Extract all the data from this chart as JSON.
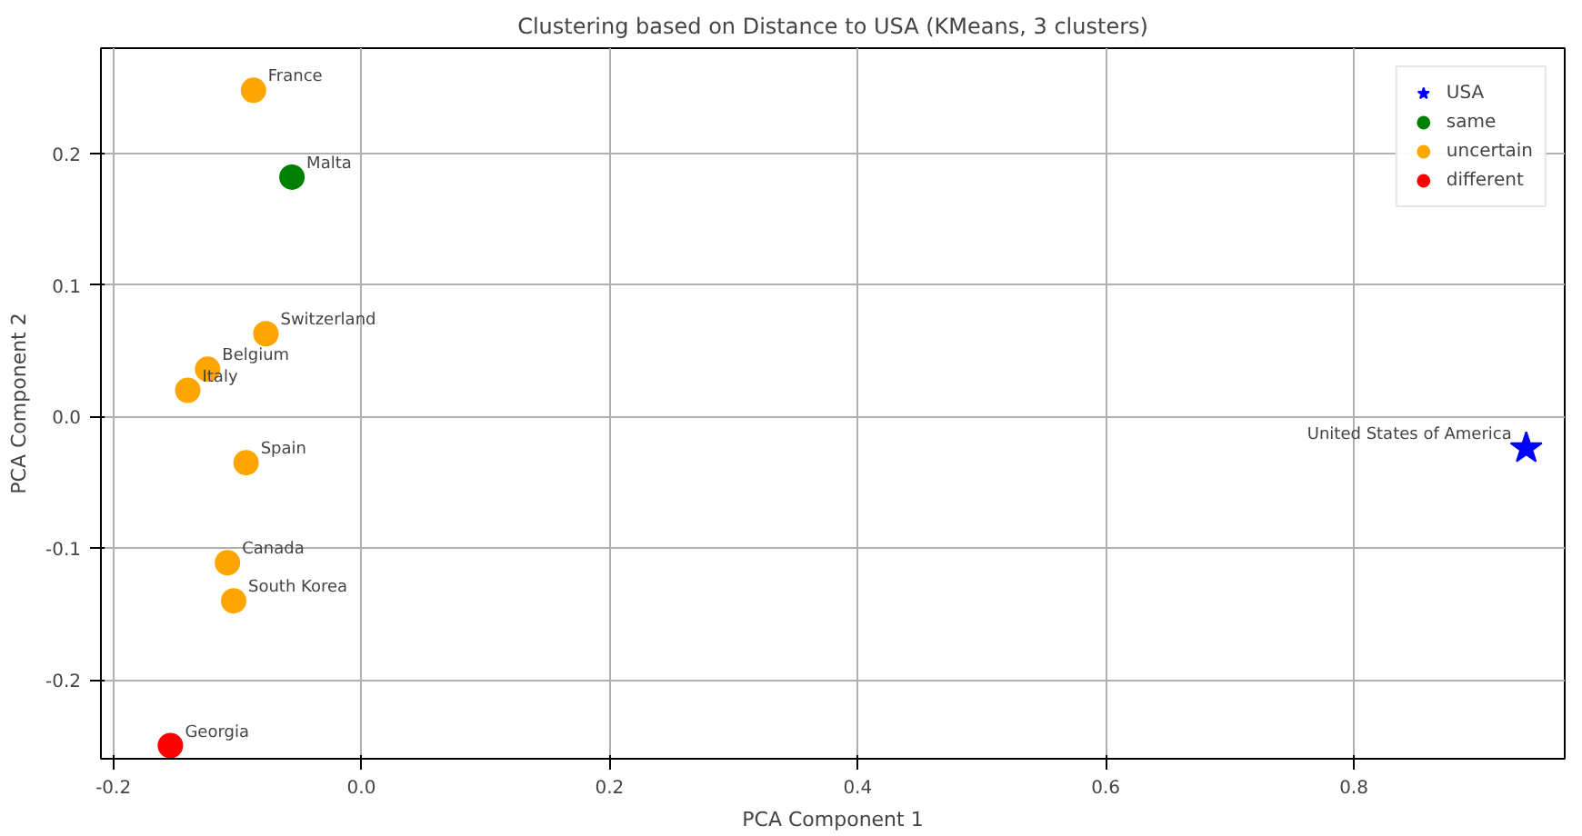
{
  "chart_data": {
    "type": "scatter",
    "title": "Clustering based on Distance to USA (KMeans, 3 clusters)",
    "xlabel": "PCA Component 1",
    "ylabel": "PCA Component 2",
    "xlim": [
      -0.21,
      0.97
    ],
    "ylim": [
      -0.26,
      0.28
    ],
    "xticks": [
      -0.2,
      {
        "value": 0,
        "label": "0.0"
      },
      0.2,
      0.4,
      0.6,
      0.8
    ],
    "yticks": [
      -0.2,
      -0.1,
      {
        "value": 0,
        "label": "0.0"
      },
      0.1,
      0.2
    ],
    "grid": true,
    "legend": "top right",
    "series": [
      {
        "name": "USA",
        "color": "#0000ff",
        "marker": "star",
        "x": [
          0.939
        ],
        "values": [
          -0.024
        ]
      },
      {
        "name": "same",
        "color": "#008000",
        "marker": "circle",
        "x": [
          -0.056
        ],
        "values": [
          0.182
        ]
      },
      {
        "name": "uncertain",
        "color": "#ffa500",
        "marker": "circle",
        "x": [
          -0.087,
          -0.077,
          -0.124,
          -0.14,
          -0.093,
          -0.108,
          -0.103
        ],
        "values": [
          0.248,
          0.063,
          0.036,
          0.02,
          -0.035,
          -0.111,
          -0.14
        ]
      },
      {
        "name": "different",
        "color": "#ff0000",
        "marker": "circle",
        "x": [
          -0.154
        ],
        "values": [
          -0.25
        ]
      }
    ],
    "annotations": [
      {
        "text": "France",
        "x": -0.087,
        "y": 0.248
      },
      {
        "text": "Malta",
        "x": -0.056,
        "y": 0.182
      },
      {
        "text": "Switzerland",
        "x": -0.077,
        "y": 0.063
      },
      {
        "text": "Belgium",
        "x": -0.124,
        "y": 0.036
      },
      {
        "text": "Italy",
        "x": -0.14,
        "y": 0.02
      },
      {
        "text": "Spain",
        "x": -0.093,
        "y": -0.035
      },
      {
        "text": "Canada",
        "x": -0.108,
        "y": -0.111
      },
      {
        "text": "South Korea",
        "x": -0.103,
        "y": -0.14
      },
      {
        "text": "Georgia",
        "x": -0.154,
        "y": -0.25
      },
      {
        "text": "United States of America",
        "x": 0.939,
        "y": -0.024
      }
    ]
  }
}
